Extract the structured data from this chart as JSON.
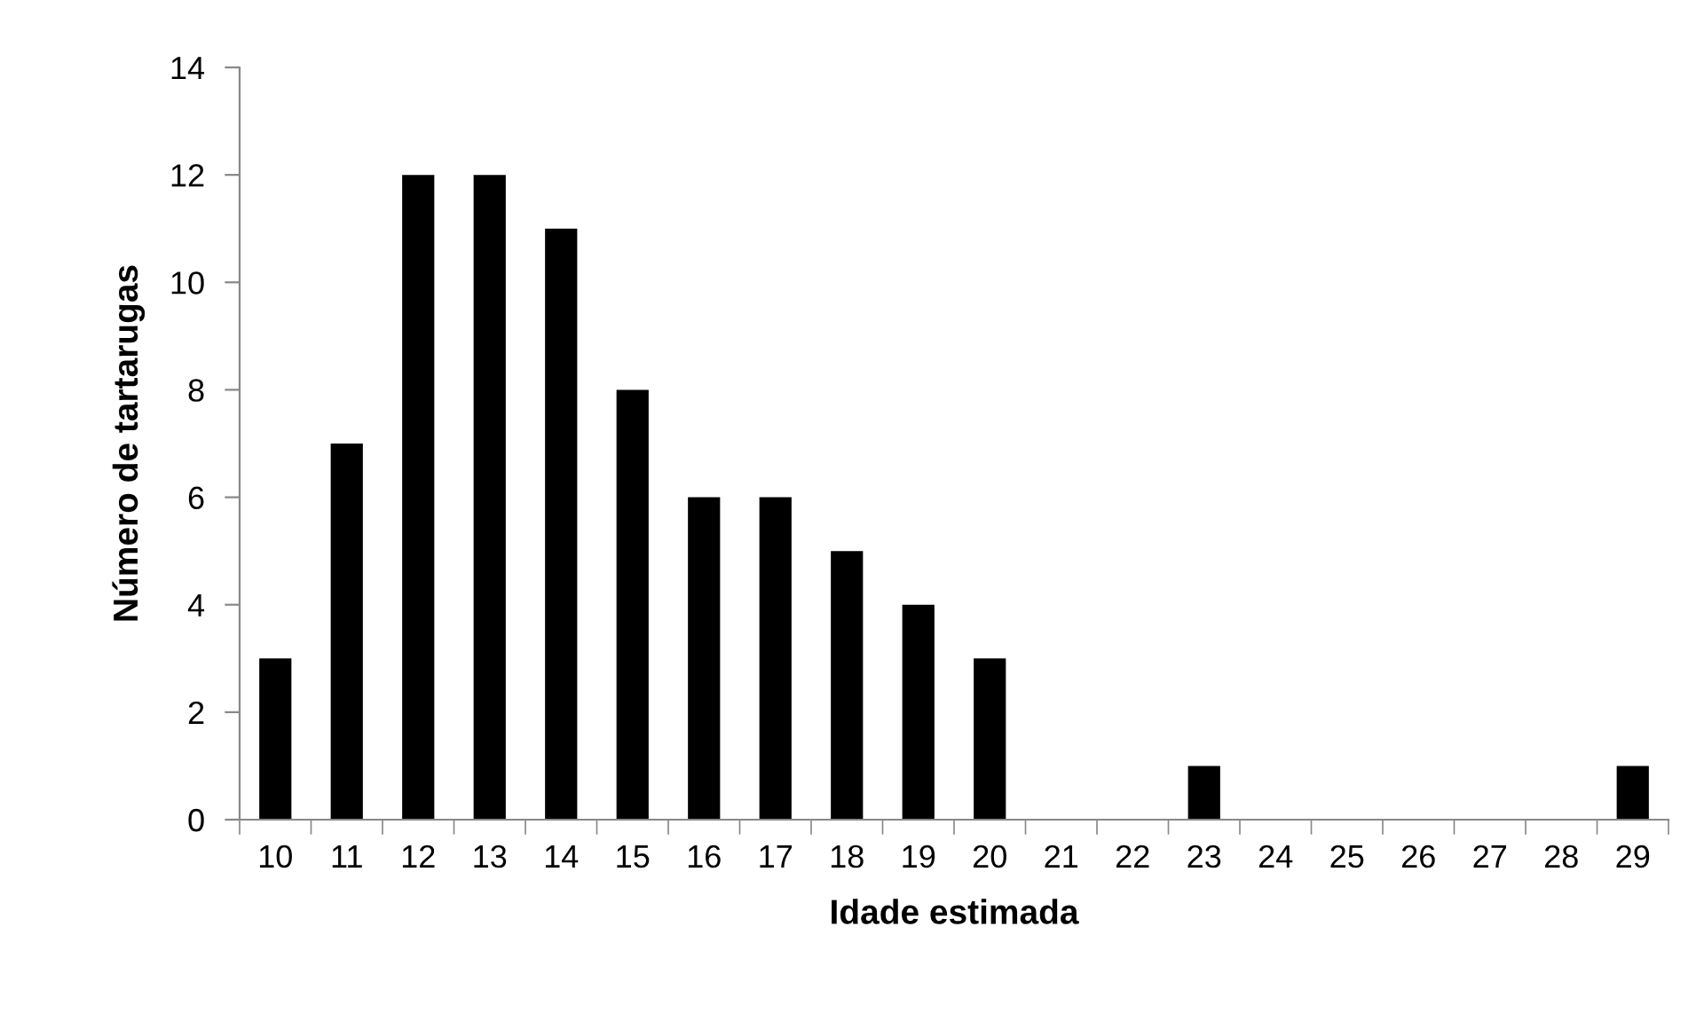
{
  "chart_data": {
    "type": "bar",
    "xlabel": "Idade estimada",
    "ylabel": "Número de tartarugas",
    "categories": [
      "10",
      "11",
      "12",
      "13",
      "14",
      "15",
      "16",
      "17",
      "18",
      "19",
      "20",
      "21",
      "22",
      "23",
      "24",
      "25",
      "26",
      "27",
      "28",
      "29"
    ],
    "values": [
      3,
      7,
      12,
      12,
      11,
      8,
      6,
      6,
      5,
      4,
      3,
      0,
      0,
      1,
      0,
      0,
      0,
      0,
      0,
      1
    ],
    "color": "#000000",
    "ylim": [
      0,
      14
    ],
    "yticks": [
      0,
      2,
      4,
      6,
      8,
      10,
      12,
      14
    ],
    "grid": false,
    "legend": false
  }
}
